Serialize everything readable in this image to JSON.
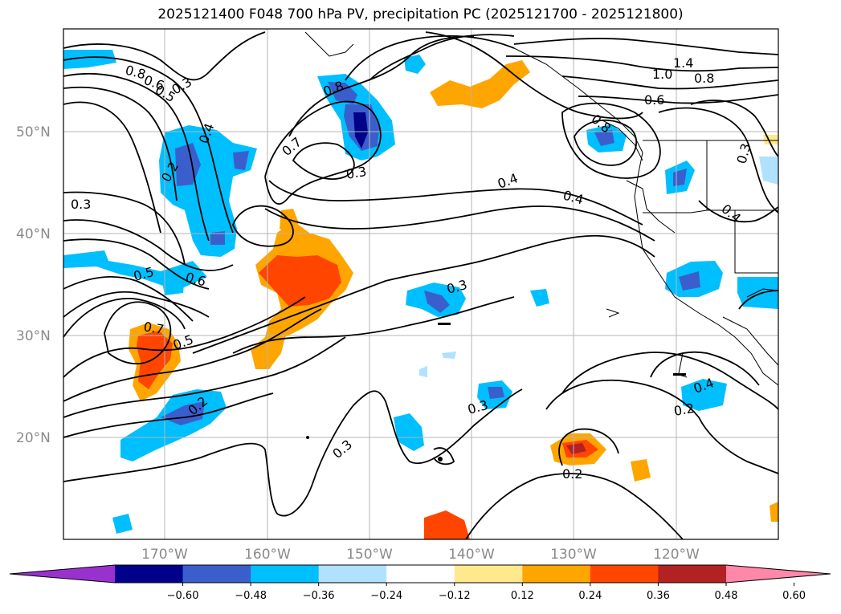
{
  "title": "2025121400 F048 700 hPa PV, precipitation PC (2025121700 - 2025121800)",
  "map": {
    "lat_labels": [
      "50°N",
      "40°N",
      "30°N",
      "20°N"
    ],
    "lon_labels": [
      "170°W",
      "160°W",
      "150°W",
      "140°W",
      "130°W",
      "120°W"
    ],
    "contour_labels": [
      "0.8",
      "0.6",
      "0.5",
      "0.3",
      "0.4",
      "0.2",
      "0.8",
      "0.7",
      "0.3",
      "0.3",
      "0.4",
      "0.4",
      "0.5",
      "0.6",
      "0.7",
      "0.5",
      "0.3",
      "0.2",
      "0.3",
      "0.3",
      "0.2",
      "1.4",
      "1.0",
      "0.8",
      "0.6",
      "0.8",
      "0.3",
      "0.4",
      "0.4",
      "0.2"
    ]
  },
  "colorbar": {
    "colors": [
      "#9932CC",
      "#00008B",
      "#3A5FCD",
      "#00BFFF",
      "#B0E2FF",
      "#FFFFFF",
      "#FFE98C",
      "#FFA500",
      "#FF4500",
      "#B22222",
      "#FF88AA"
    ],
    "tick_labels": [
      "−0.60",
      "−0.48",
      "−0.36",
      "−0.24",
      "−0.12",
      "0.12",
      "0.24",
      "0.36",
      "0.48",
      "0.60"
    ]
  }
}
